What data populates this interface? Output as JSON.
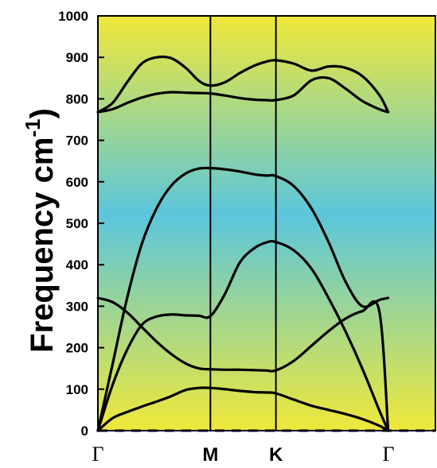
{
  "chart_data": {
    "type": "line",
    "ylabel": {
      "main": "Frequency  cm",
      "superscript": "-1",
      "close": ")"
    },
    "ylim": [
      0,
      1000
    ],
    "yticks": [
      0,
      100,
      200,
      300,
      400,
      500,
      600,
      700,
      800,
      900,
      1000
    ],
    "xlim": [
      0,
      3
    ],
    "xticks": [
      {
        "pos": 0,
        "label": "Γ"
      },
      {
        "pos": 1,
        "label": "M"
      },
      {
        "pos": 1.5823,
        "label": "K"
      },
      {
        "pos": 2.5823,
        "label": "Γ"
      }
    ],
    "vlines": [
      1,
      1.5823
    ],
    "zero_line": {
      "y": 0,
      "style": "dashed"
    },
    "background": {
      "edge_color": "#f0e83a",
      "center_color": "#5bc6dc"
    },
    "series": [
      {
        "x": [
          0,
          0.13,
          0.26,
          0.39,
          0.52,
          0.65,
          0.78,
          0.9,
          1.0,
          1.13,
          1.26,
          1.39,
          1.5,
          1.58,
          1.74,
          1.9,
          2.05,
          2.2,
          2.35,
          2.5,
          2.58
        ],
        "y": [
          0,
          30,
          45,
          58,
          70,
          83,
          98,
          103,
          103,
          100,
          96,
          93,
          92,
          90,
          75,
          60,
          50,
          40,
          28,
          12,
          0
        ]
      },
      {
        "x": [
          0,
          0.13,
          0.26,
          0.39,
          0.52,
          0.65,
          0.78,
          0.9,
          1.0,
          1.13,
          1.26,
          1.39,
          1.5,
          1.58,
          1.74,
          1.9,
          2.05,
          2.2,
          2.35,
          2.5,
          2.58
        ],
        "y": [
          0,
          110,
          195,
          255,
          275,
          280,
          278,
          277,
          276,
          330,
          405,
          440,
          454,
          455,
          435,
          390,
          320,
          240,
          150,
          50,
          0
        ]
      },
      {
        "x": [
          0,
          0.13,
          0.26,
          0.39,
          0.52,
          0.65,
          0.78,
          0.9,
          1.0,
          1.13,
          1.26,
          1.39,
          1.5,
          1.58,
          1.74,
          1.9,
          2.05,
          2.2,
          2.35,
          2.5,
          2.58
        ],
        "y": [
          0,
          160,
          320,
          450,
          535,
          590,
          620,
          632,
          633,
          630,
          625,
          618,
          615,
          614,
          590,
          535,
          455,
          360,
          300,
          315,
          320
        ]
      },
      {
        "x": [
          0,
          0.13,
          0.26,
          0.39,
          0.52,
          0.65,
          0.78,
          0.9,
          1.0,
          1.13,
          1.26,
          1.39,
          1.5,
          1.58,
          1.74,
          1.9,
          2.05,
          2.2,
          2.35,
          2.5,
          2.58
        ],
        "y": [
          320,
          310,
          285,
          250,
          215,
          185,
          162,
          150,
          148,
          147,
          147,
          146,
          145,
          145,
          168,
          205,
          240,
          270,
          288,
          290,
          0
        ]
      },
      {
        "x": [
          0,
          0.13,
          0.26,
          0.39,
          0.52,
          0.65,
          0.78,
          0.9,
          1.0,
          1.13,
          1.26,
          1.39,
          1.5,
          1.58,
          1.74,
          1.9,
          2.05,
          2.2,
          2.35,
          2.5,
          2.58
        ],
        "y": [
          768,
          775,
          790,
          803,
          812,
          816,
          815,
          814,
          813,
          808,
          802,
          798,
          797,
          797,
          808,
          845,
          850,
          825,
          795,
          775,
          768
        ]
      },
      {
        "x": [
          0,
          0.13,
          0.26,
          0.39,
          0.52,
          0.65,
          0.78,
          0.9,
          1.0,
          1.13,
          1.26,
          1.39,
          1.5,
          1.58,
          1.74,
          1.9,
          2.05,
          2.2,
          2.35,
          2.5,
          2.58
        ],
        "y": [
          768,
          790,
          840,
          885,
          900,
          898,
          875,
          843,
          832,
          840,
          862,
          880,
          890,
          893,
          885,
          868,
          878,
          875,
          855,
          810,
          768
        ]
      }
    ]
  }
}
